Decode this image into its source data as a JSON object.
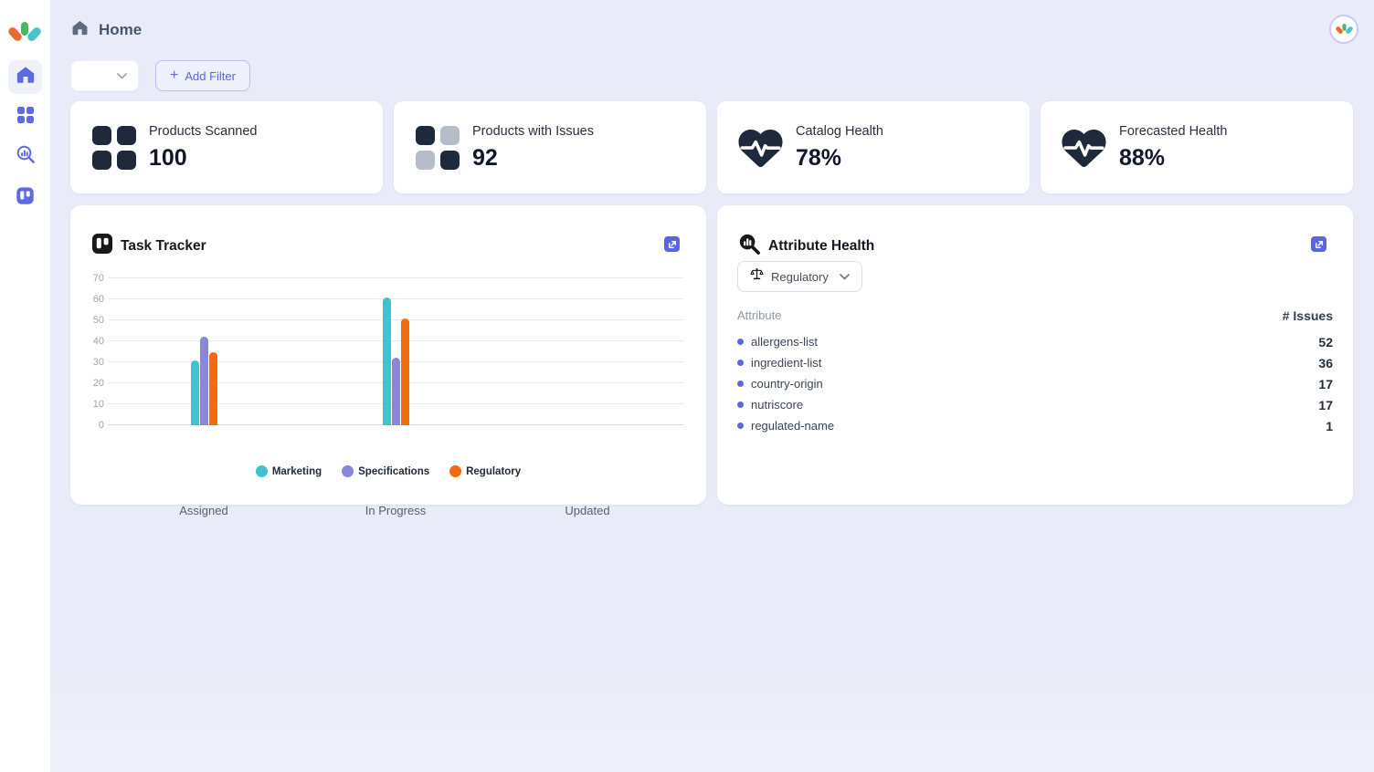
{
  "header": {
    "title": "Home"
  },
  "topbar": {
    "filter_select_value": "",
    "add_filter_label": "Add Filter",
    "plus": "+"
  },
  "sidebar": {
    "items": [
      {
        "name": "home",
        "icon": "home-icon",
        "active": true
      },
      {
        "name": "apps",
        "icon": "grid-icon",
        "active": false
      },
      {
        "name": "insights",
        "icon": "search-chart-icon",
        "active": false
      },
      {
        "name": "board",
        "icon": "kanban-icon",
        "active": false
      }
    ]
  },
  "stat_cards": [
    {
      "label": "Products Scanned",
      "value": "100",
      "icon": "grid-squares-dark-icon"
    },
    {
      "label": "Products with Issues",
      "value": "92",
      "icon": "grid-squares-checker-icon"
    },
    {
      "label": "Catalog Health",
      "value": "78%",
      "icon": "heart-pulse-icon"
    },
    {
      "label": "Forecasted Health",
      "value": "88%",
      "icon": "heart-pulse-icon"
    }
  ],
  "task_tracker": {
    "title": "Task Tracker"
  },
  "chart_data": {
    "type": "bar",
    "title": "Task Tracker",
    "categories": [
      "Assigned",
      "In Progress",
      "Updated"
    ],
    "series": [
      {
        "name": "Marketing",
        "color": "#3fc3d2",
        "values": [
          31,
          61,
          0
        ]
      },
      {
        "name": "Specifications",
        "color": "#8986dc",
        "values": [
          42,
          32,
          0
        ]
      },
      {
        "name": "Regulatory",
        "color": "#f26b0e",
        "values": [
          35,
          51,
          0
        ]
      }
    ],
    "ylim": [
      0,
      70
    ],
    "ytick_step": 10,
    "grid": true,
    "legend_position": "bottom"
  },
  "attribute_health": {
    "title": "Attribute Health",
    "filter": {
      "label": "Regulatory"
    },
    "columns": {
      "attribute": "Attribute",
      "issues": "# Issues"
    },
    "rows": [
      {
        "name": "allergens-list",
        "issues": "52"
      },
      {
        "name": "ingredient-list",
        "issues": "36"
      },
      {
        "name": "country-origin",
        "issues": "17"
      },
      {
        "name": "nutriscore",
        "issues": "17"
      },
      {
        "name": "regulated-name",
        "issues": "1"
      }
    ]
  },
  "colors": {
    "accent_indigo": "#5e6ae4",
    "dark_navy": "#1e293b",
    "muted_gray_square": "#b6bcc8",
    "background": "#e9ecf8",
    "logo_orange": "#ed6a2d",
    "logo_green": "#4db863",
    "logo_teal": "#49c2cf"
  }
}
